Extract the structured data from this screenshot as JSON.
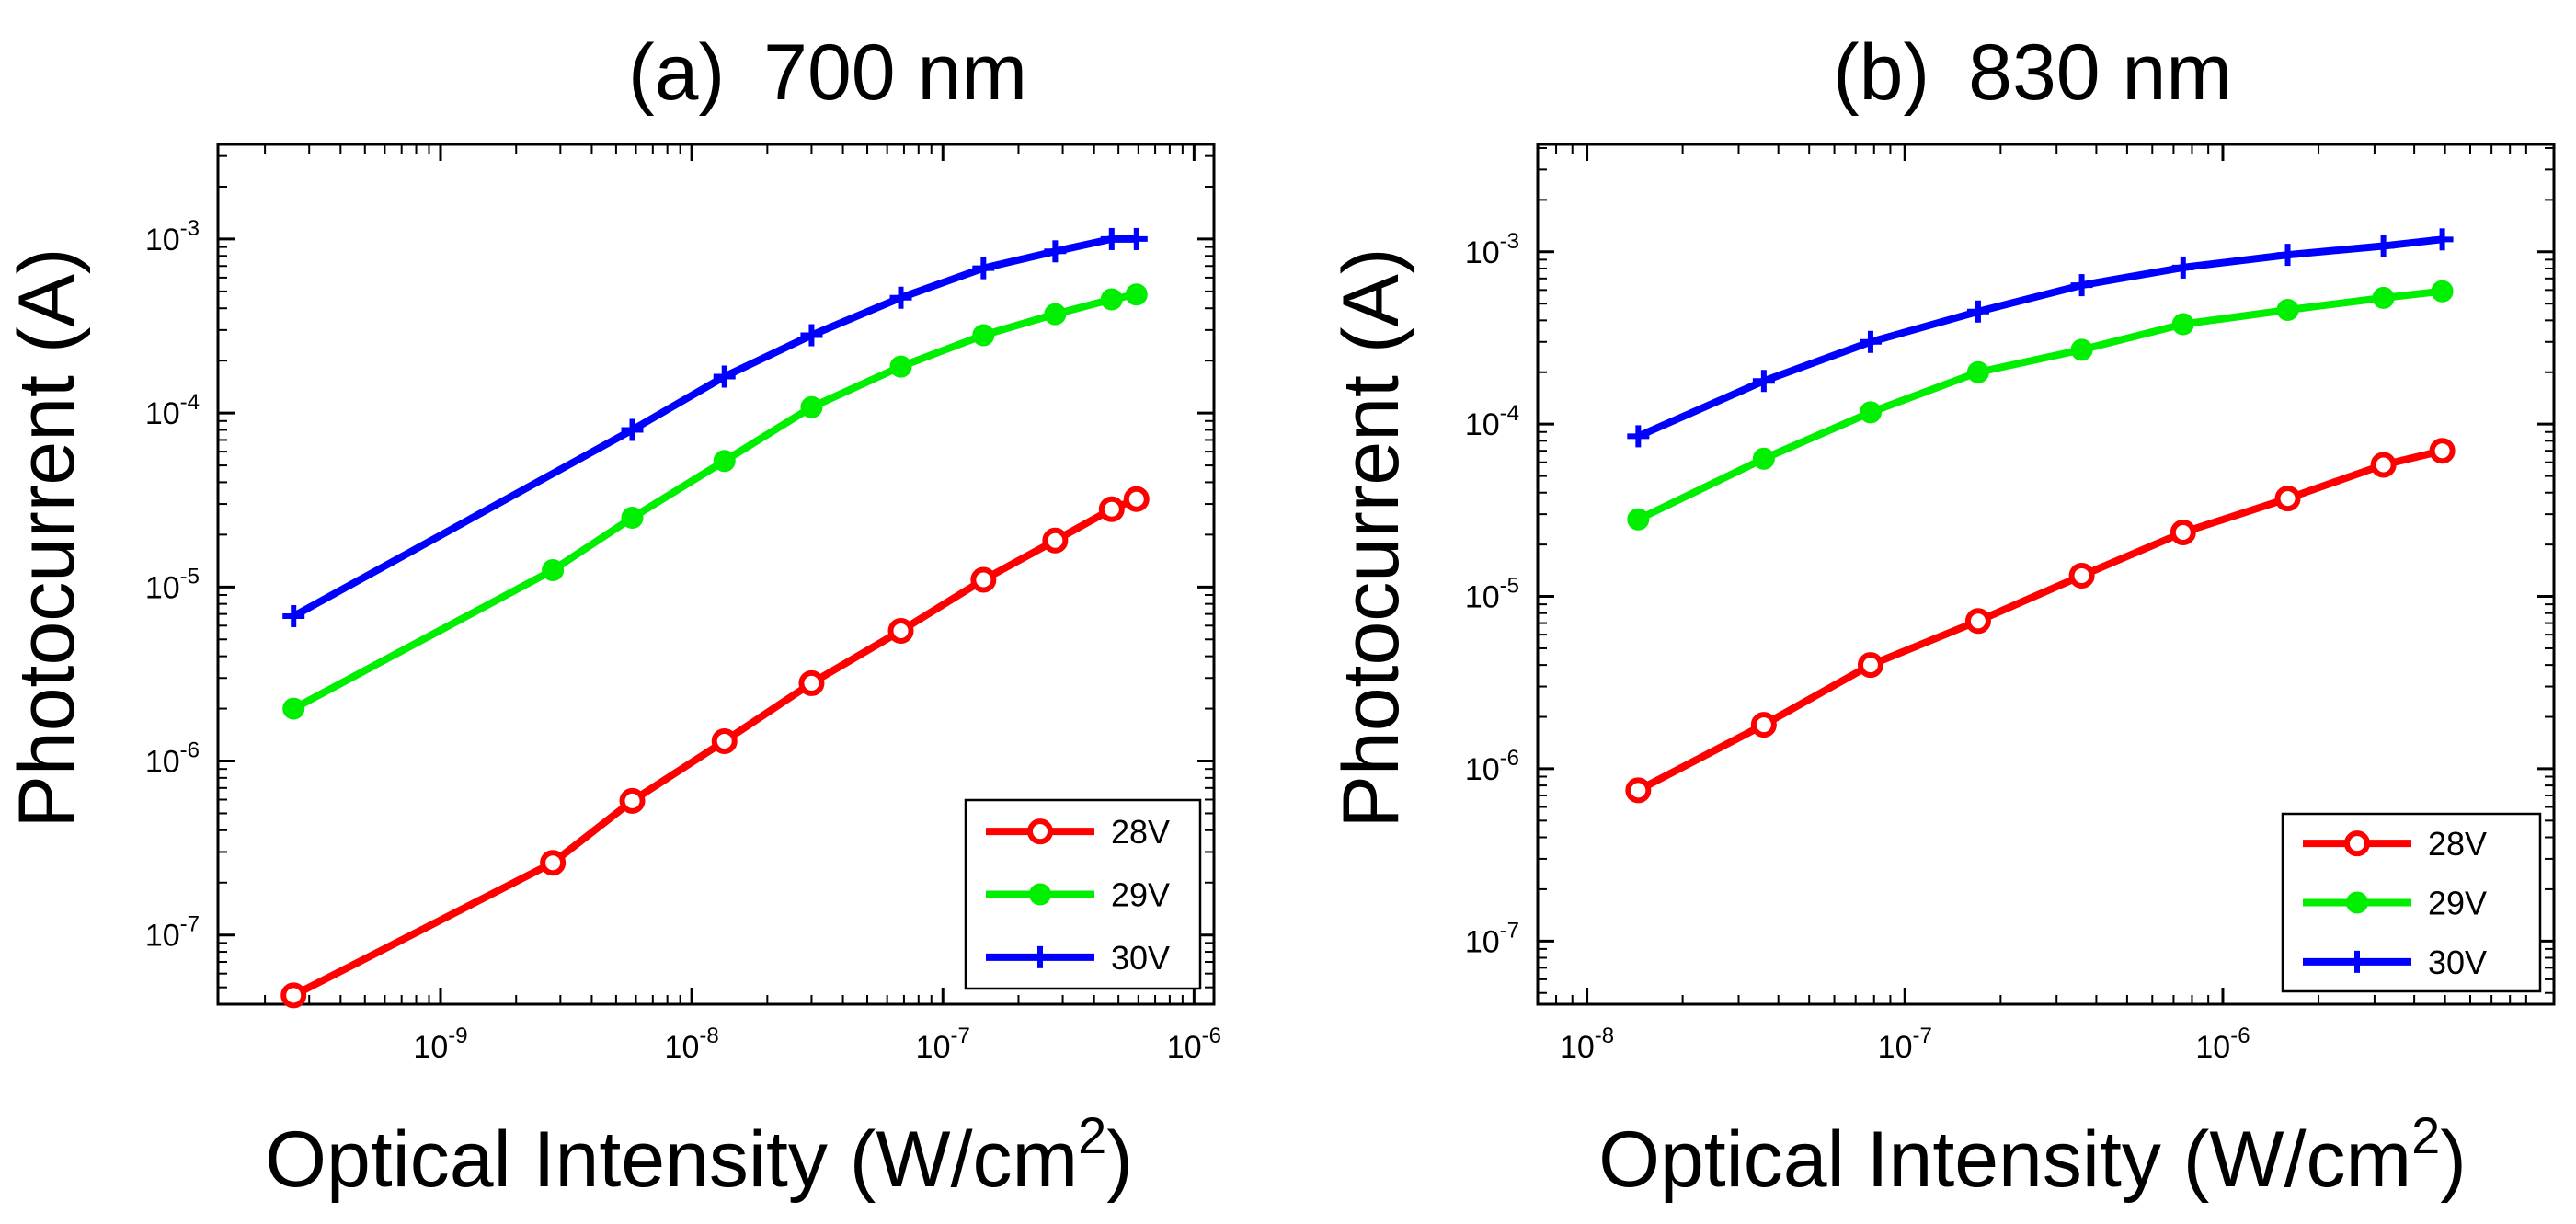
{
  "chart_data": [
    {
      "type": "line",
      "title_label": "(a)",
      "title_wavelength": "700 nm",
      "xlabel": "Optical Intensity (W/cm",
      "xlabel_sup": "2",
      "xlabel_end": ")",
      "ylabel": "Photocurrent (A)",
      "xscale": "log",
      "yscale": "log",
      "xlim": [
        1.3e-10,
        1.2e-06
      ],
      "ylim": [
        4e-08,
        0.0035
      ],
      "xticks": [
        {
          "value": 1e-09,
          "base": "10",
          "exp": "-9"
        },
        {
          "value": 1e-08,
          "base": "10",
          "exp": "-8"
        },
        {
          "value": 1e-07,
          "base": "10",
          "exp": "-7"
        },
        {
          "value": 1e-06,
          "base": "10",
          "exp": "-6"
        }
      ],
      "yticks": [
        {
          "value": 1e-07,
          "base": "10",
          "exp": "-7"
        },
        {
          "value": 1e-06,
          "base": "10",
          "exp": "-6"
        },
        {
          "value": 1e-05,
          "base": "10",
          "exp": "-5"
        },
        {
          "value": 0.0001,
          "base": "10",
          "exp": "-4"
        },
        {
          "value": 0.001,
          "base": "10",
          "exp": "-3"
        }
      ],
      "legend_position": "bottom-right",
      "series": [
        {
          "name": "28V",
          "color": "#ff0000",
          "marker": "open-circle",
          "x": [
            2.6e-10,
            2.8e-09,
            5.8e-09,
            1.35e-08,
            3e-08,
            6.8e-08,
            1.45e-07,
            2.8e-07,
            4.7e-07,
            5.9e-07
          ],
          "y": [
            4.5e-08,
            2.6e-07,
            5.9e-07,
            1.3e-06,
            2.8e-06,
            5.6e-06,
            1.1e-05,
            1.85e-05,
            2.8e-05,
            3.2e-05
          ]
        },
        {
          "name": "29V",
          "color": "#00ee00",
          "marker": "filled-circle",
          "x": [
            2.6e-10,
            2.8e-09,
            5.8e-09,
            1.35e-08,
            3e-08,
            6.8e-08,
            1.45e-07,
            2.8e-07,
            4.7e-07,
            5.9e-07
          ],
          "y": [
            2e-06,
            1.25e-05,
            2.5e-05,
            5.3e-05,
            0.000108,
            0.000185,
            0.00028,
            0.00037,
            0.00045,
            0.00048
          ]
        },
        {
          "name": "30V",
          "color": "#0000ff",
          "marker": "plus",
          "x": [
            2.6e-10,
            5.8e-09,
            1.35e-08,
            3e-08,
            6.8e-08,
            1.45e-07,
            2.8e-07,
            4.7e-07,
            5.9e-07
          ],
          "y": [
            6.8e-06,
            8e-05,
            0.000162,
            0.00028,
            0.00046,
            0.00068,
            0.00085,
            0.001,
            0.001
          ]
        }
      ]
    },
    {
      "type": "line",
      "title_label": "(b)",
      "title_wavelength": "830 nm",
      "xlabel": "Optical Intensity (W/cm",
      "xlabel_sup": "2",
      "xlabel_end": ")",
      "ylabel": "Photocurrent (A)",
      "xscale": "log",
      "yscale": "log",
      "xlim": [
        7e-09,
        1.1e-05
      ],
      "ylim": [
        4.3e-08,
        0.0042
      ],
      "xticks": [
        {
          "value": 1e-08,
          "base": "10",
          "exp": "-8"
        },
        {
          "value": 1e-07,
          "base": "10",
          "exp": "-7"
        },
        {
          "value": 1e-06,
          "base": "10",
          "exp": "-6"
        }
      ],
      "yticks": [
        {
          "value": 1e-07,
          "base": "10",
          "exp": "-7"
        },
        {
          "value": 1e-06,
          "base": "10",
          "exp": "-6"
        },
        {
          "value": 1e-05,
          "base": "10",
          "exp": "-5"
        },
        {
          "value": 0.0001,
          "base": "10",
          "exp": "-4"
        },
        {
          "value": 0.001,
          "base": "10",
          "exp": "-3"
        }
      ],
      "legend_position": "bottom-right",
      "series": [
        {
          "name": "28V",
          "color": "#ff0000",
          "marker": "open-circle",
          "x": [
            1.45e-08,
            3.6e-08,
            7.8e-08,
            1.7e-07,
            3.6e-07,
            7.5e-07,
            1.6e-06,
            3.2e-06,
            4.9e-06
          ],
          "y": [
            7.5e-07,
            1.8e-06,
            4e-06,
            7.2e-06,
            1.32e-05,
            2.35e-05,
            3.7e-05,
            5.8e-05,
            7e-05
          ]
        },
        {
          "name": "29V",
          "color": "#00ee00",
          "marker": "filled-circle",
          "x": [
            1.45e-08,
            3.6e-08,
            7.8e-08,
            1.7e-07,
            3.6e-07,
            7.5e-07,
            1.6e-06,
            3.2e-06,
            4.9e-06
          ],
          "y": [
            2.8e-05,
            6.3e-05,
            0.000117,
            0.0002,
            0.00027,
            0.00038,
            0.00046,
            0.00054,
            0.00059
          ]
        },
        {
          "name": "30V",
          "color": "#0000ff",
          "marker": "plus",
          "x": [
            1.45e-08,
            3.6e-08,
            7.8e-08,
            1.7e-07,
            3.6e-07,
            7.5e-07,
            1.6e-06,
            3.2e-06,
            4.9e-06
          ],
          "y": [
            8.5e-05,
            0.000178,
            0.0003,
            0.00045,
            0.00064,
            0.00081,
            0.00096,
            0.00108,
            0.00118
          ]
        }
      ]
    }
  ]
}
